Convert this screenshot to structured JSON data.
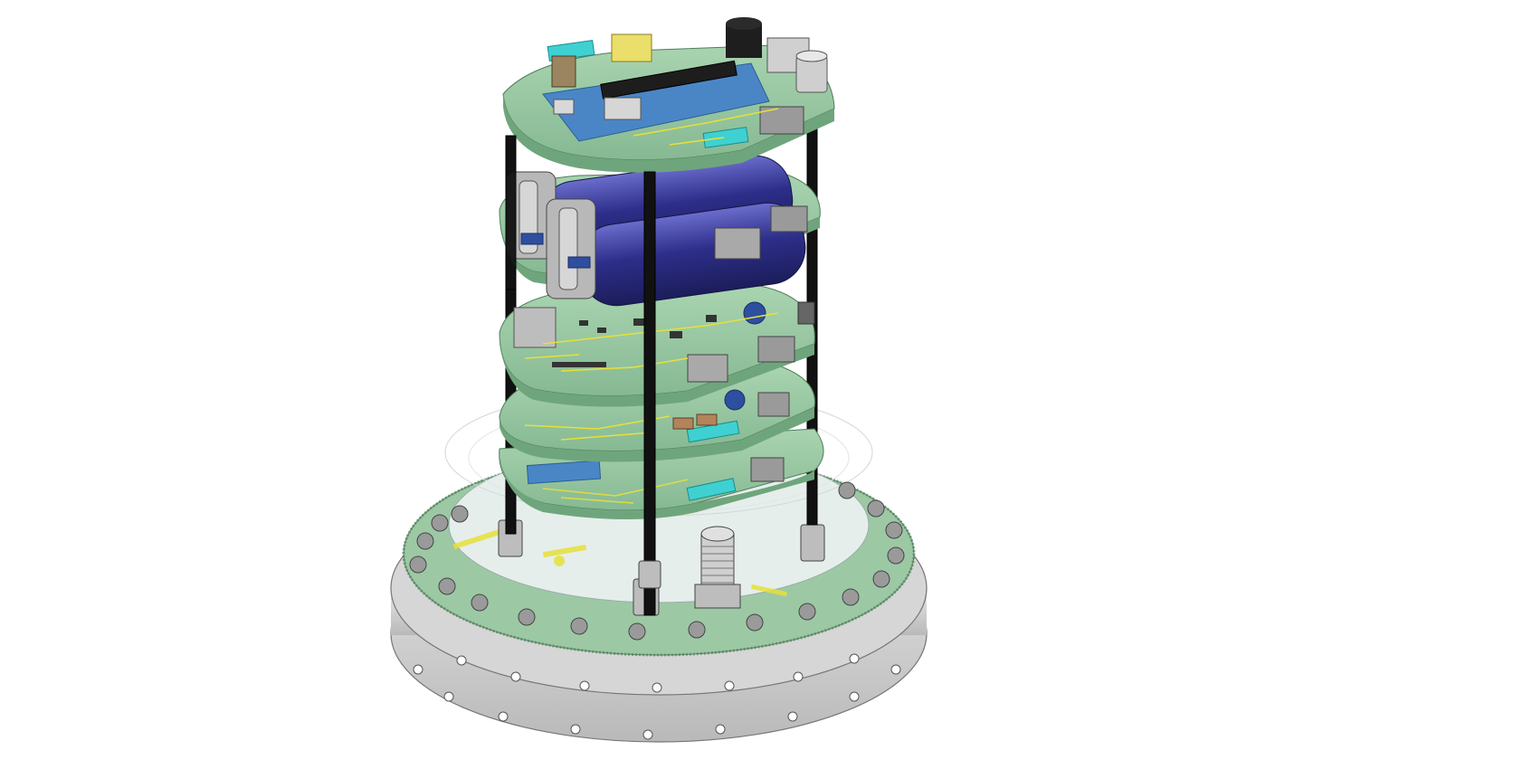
{
  "scene": {
    "subject": "cad-render-pcb-stack",
    "background": "#ffffff",
    "colors": {
      "pcb": "#9cc9a4",
      "pcb_dark": "#6fa57c",
      "trace": "#e8e03a",
      "standoff": "#111111",
      "capacitor": "#2e2f8a",
      "capacitor_light": "#5b5dbb",
      "module_blue": "#4a86c6",
      "connector_cyan": "#3fd1d1",
      "metal": "#c9c9c9",
      "metal_dark": "#8f8f8f",
      "base": "#dcdcdc",
      "glass": "#eef3f3"
    },
    "board_count": 6
  }
}
